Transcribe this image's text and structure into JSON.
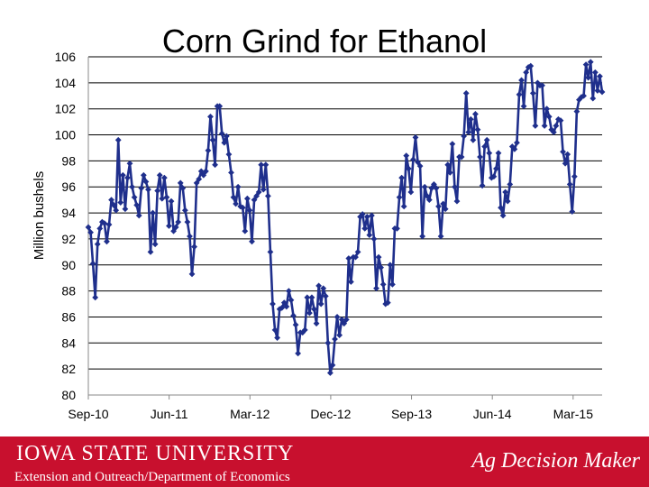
{
  "slide": {
    "footer_university": "IOWA STATE UNIVERSITY",
    "footer_department": "Extension and Outreach/Department of Economics",
    "footer_brand": "Ag Decision Maker",
    "colors": {
      "footer_bg": "#c8102e",
      "series": "#1f2f8c"
    }
  },
  "chart_data": {
    "type": "line",
    "title": "Corn Grind for Ethanol",
    "xlabel": "",
    "ylabel": "Million bushels",
    "ylim": [
      80,
      106
    ],
    "yticks": [
      80,
      82,
      84,
      86,
      88,
      90,
      92,
      94,
      96,
      98,
      100,
      102,
      104,
      106
    ],
    "xticks": [
      "Sep-10",
      "Jun-11",
      "Mar-12",
      "Dec-12",
      "Sep-13",
      "Jun-14",
      "Mar-15"
    ],
    "x_range_weeks": [
      0,
      248
    ],
    "x_tick_weeks": [
      0,
      39,
      78,
      117,
      156,
      195,
      234
    ],
    "grid": "horizontal",
    "series": [
      {
        "marker": "diamond",
        "values": [
          92.9,
          92.5,
          90.1,
          87.5,
          91.6,
          92.8,
          93.3,
          93.2,
          91.8,
          93.1,
          95.0,
          94.6,
          94.2,
          99.6,
          94.8,
          96.9,
          94.3,
          96.7,
          97.8,
          96.0,
          95.2,
          94.6,
          93.8,
          95.9,
          96.9,
          96.4,
          95.8,
          91.0,
          94.0,
          91.6,
          95.7,
          96.9,
          95.1,
          96.7,
          95.2,
          93.0,
          94.9,
          92.6,
          92.9,
          93.3,
          96.3,
          95.9,
          94.2,
          93.3,
          92.2,
          89.3,
          91.4,
          96.3,
          96.6,
          97.2,
          96.9,
          97.2,
          98.8,
          101.4,
          99.6,
          97.7,
          102.2,
          102.2,
          100.1,
          99.4,
          99.9,
          98.5,
          97.1,
          95.2,
          94.7,
          96.0,
          94.5,
          94.4,
          92.6,
          95.1,
          94.2,
          91.8,
          95.0,
          95.3,
          95.6,
          97.7,
          95.8,
          97.7,
          95.3,
          91.0,
          87.0,
          85.0,
          84.4,
          86.6,
          86.7,
          87.1,
          86.8,
          88.0,
          87.3,
          86.1,
          85.4,
          83.2,
          84.8,
          84.8,
          85.0,
          87.5,
          86.3,
          87.5,
          86.6,
          85.5,
          88.4,
          87.0,
          88.2,
          87.6,
          84.0,
          81.7,
          82.3,
          84.3,
          86.0,
          84.6,
          85.8,
          85.5,
          85.8,
          90.5,
          88.7,
          90.6,
          90.6,
          91.0,
          93.7,
          93.9,
          92.8,
          93.7,
          92.3,
          93.8,
          92.0,
          88.2,
          90.6,
          89.8,
          88.5,
          87.0,
          87.1,
          90.0,
          88.5,
          92.8,
          92.8,
          95.2,
          96.7,
          94.5,
          98.4,
          97.4,
          95.6,
          98.1,
          99.8,
          97.9,
          97.6,
          92.2,
          96.0,
          95.3,
          95.0,
          95.9,
          96.2,
          95.9,
          94.5,
          92.2,
          94.7,
          94.3,
          97.7,
          97.1,
          99.3,
          96.0,
          94.9,
          98.3,
          98.3,
          99.9,
          103.2,
          100.2,
          101.2,
          99.6,
          101.6,
          100.4,
          98.3,
          96.1,
          99.1,
          99.6,
          98.6,
          96.7,
          96.8,
          97.4,
          98.6,
          94.4,
          93.8,
          95.6,
          94.9,
          96.2,
          99.1,
          98.9,
          99.4,
          103.1,
          104.2,
          102.2,
          104.8,
          105.2,
          105.3,
          103.2,
          100.7,
          104.0,
          103.8,
          103.8,
          100.7,
          102.0,
          101.4,
          100.4,
          100.2,
          100.7,
          101.2,
          101.1,
          98.7,
          97.8,
          98.5,
          96.2,
          94.1,
          96.8,
          101.8,
          102.7,
          102.9,
          103.0,
          105.4,
          104.4,
          105.6,
          102.8,
          104.8,
          103.4,
          104.5,
          103.3
        ]
      }
    ]
  }
}
